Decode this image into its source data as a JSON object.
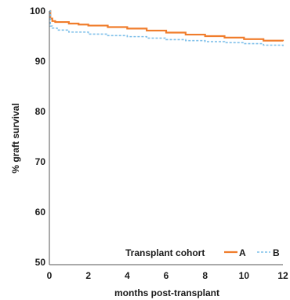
{
  "chart_data": {
    "type": "line",
    "title": "",
    "xlabel": "months post-transplant",
    "ylabel": "% graft survival",
    "xlim": [
      0,
      12
    ],
    "ylim": [
      49.5,
      100
    ],
    "xticks": [
      0,
      2,
      4,
      6,
      8,
      10,
      12
    ],
    "yticks": [
      50,
      60,
      70,
      80,
      90,
      100
    ],
    "grid": false,
    "legend": {
      "title": "Transplant cohort",
      "placement": "bottom-right"
    },
    "series": [
      {
        "name": "A",
        "color": "#f07d2c",
        "style": "solid",
        "step": true,
        "x": [
          0,
          0.05,
          0.15,
          0.3,
          1.0,
          1.5,
          2.0,
          3.0,
          4.0,
          5.0,
          6.0,
          7.0,
          8.0,
          9.0,
          10.0,
          11.0,
          12.0
        ],
        "y": [
          100,
          98.5,
          98.0,
          97.8,
          97.5,
          97.3,
          97.1,
          96.8,
          96.5,
          96.1,
          95.7,
          95.3,
          95.0,
          94.7,
          94.4,
          94.1,
          94.0
        ]
      },
      {
        "name": "B",
        "color": "#7fc0ea",
        "style": "dashed",
        "step": true,
        "x": [
          0,
          0.05,
          0.15,
          0.4,
          1.0,
          2.0,
          3.0,
          4.0,
          5.0,
          6.0,
          7.0,
          8.0,
          9.0,
          10.0,
          11.0,
          12.0
        ],
        "y": [
          100,
          97.0,
          96.6,
          96.2,
          95.8,
          95.4,
          95.1,
          94.9,
          94.6,
          94.3,
          94.1,
          93.9,
          93.7,
          93.5,
          93.2,
          93.0
        ]
      }
    ]
  }
}
